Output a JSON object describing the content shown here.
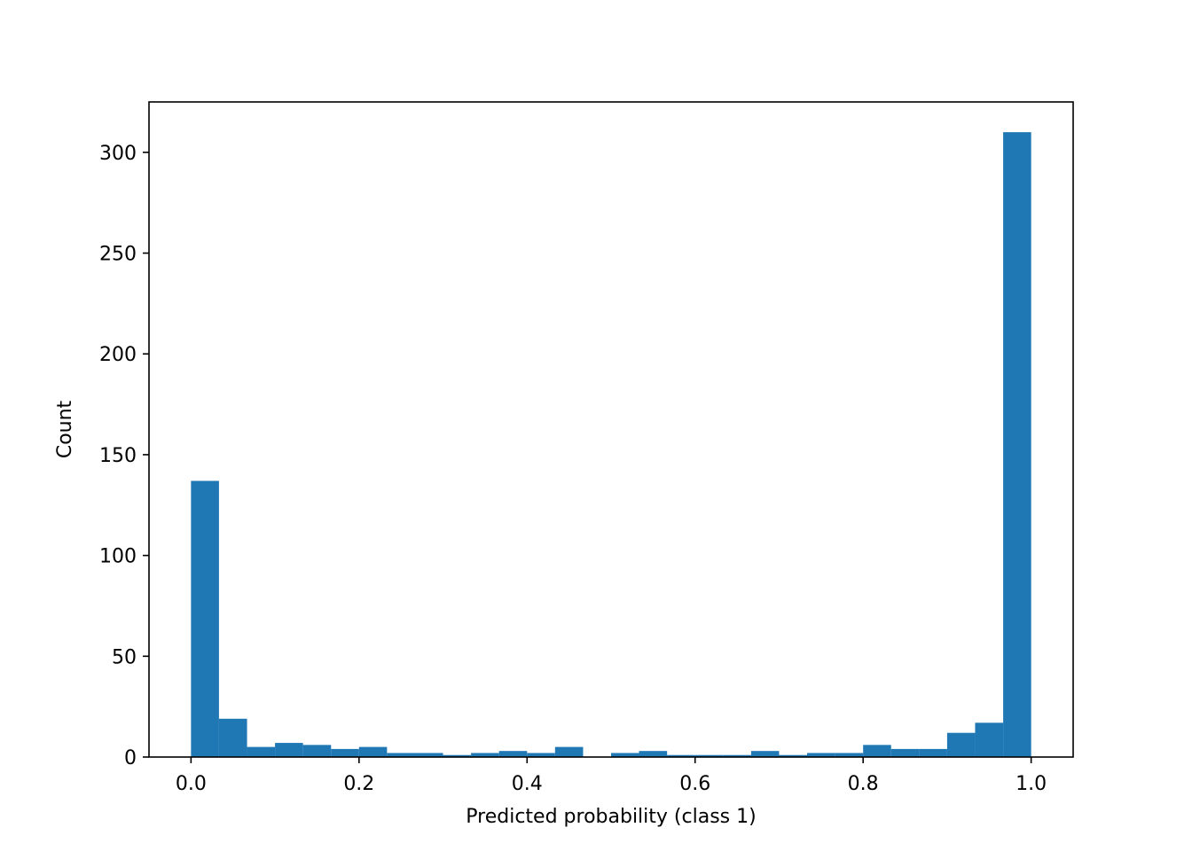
{
  "chart_data": {
    "type": "bar",
    "title": "",
    "xlabel": "Predicted probability (class 1)",
    "ylabel": "Count",
    "xlim": [
      -0.05,
      1.05
    ],
    "ylim": [
      0,
      325
    ],
    "grid": false,
    "bar_color": "#1f77b4",
    "x_ticks": [
      {
        "value": 0.0,
        "label": "0.0"
      },
      {
        "value": 0.2,
        "label": "0.2"
      },
      {
        "value": 0.4,
        "label": "0.4"
      },
      {
        "value": 0.6,
        "label": "0.6"
      },
      {
        "value": 0.8,
        "label": "0.8"
      },
      {
        "value": 1.0,
        "label": "1.0"
      }
    ],
    "y_ticks": [
      {
        "value": 0,
        "label": "0"
      },
      {
        "value": 50,
        "label": "50"
      },
      {
        "value": 100,
        "label": "100"
      },
      {
        "value": 150,
        "label": "150"
      },
      {
        "value": 200,
        "label": "200"
      },
      {
        "value": 250,
        "label": "250"
      },
      {
        "value": 300,
        "label": "300"
      }
    ],
    "bin_edges": [
      0.0,
      0.0333,
      0.0667,
      0.1,
      0.1333,
      0.1667,
      0.2,
      0.2333,
      0.2667,
      0.3,
      0.3333,
      0.3667,
      0.4,
      0.4333,
      0.4667,
      0.5,
      0.5333,
      0.5667,
      0.6,
      0.6333,
      0.6667,
      0.7,
      0.7333,
      0.7667,
      0.8,
      0.8333,
      0.8667,
      0.9,
      0.9333,
      0.9667,
      1.0
    ],
    "counts": [
      137,
      19,
      5,
      7,
      6,
      4,
      5,
      2,
      2,
      1,
      2,
      3,
      2,
      5,
      0,
      2,
      3,
      1,
      1,
      1,
      3,
      1,
      2,
      2,
      6,
      4,
      4,
      12,
      17,
      310
    ]
  }
}
